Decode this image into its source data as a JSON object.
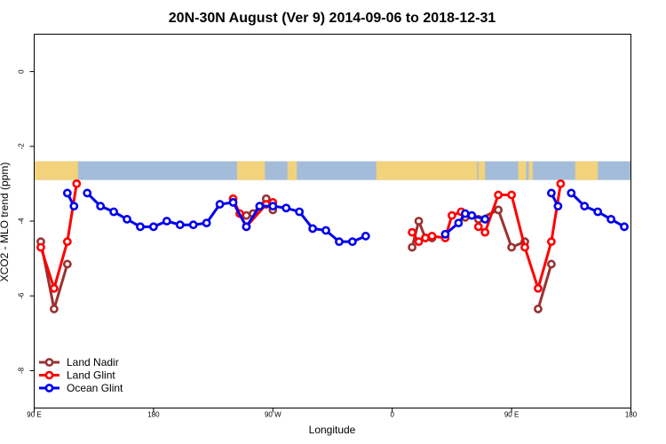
{
  "chart_data": {
    "type": "line",
    "title": "20N-30N August (Ver 9)   2014-09-06 to 2018-12-31",
    "xlabel": "Longitude",
    "ylabel": "XCO2 - MLO trend (ppm)",
    "xlim": [
      90,
      540
    ],
    "ylim": [
      -9,
      1
    ],
    "x_ticks": [
      {
        "value": 90,
        "label": "90 E"
      },
      {
        "value": 180,
        "label": "180"
      },
      {
        "value": 270,
        "label": "90 W"
      },
      {
        "value": 360,
        "label": "0"
      },
      {
        "value": 450,
        "label": "90 E"
      },
      {
        "value": 540,
        "label": "180"
      }
    ],
    "y_ticks": [
      {
        "value": 0,
        "label": "0"
      },
      {
        "value": -2,
        "label": "-2"
      },
      {
        "value": -4,
        "label": "-4"
      },
      {
        "value": -6,
        "label": "-6"
      },
      {
        "value": -8,
        "label": "-8"
      }
    ],
    "grid": false,
    "legend_position": "bottom-left",
    "map_strip": {
      "y_range": [
        -2.4,
        -2.9
      ],
      "ocean_color": "#a3bcd9",
      "land_color": "#f2d27a",
      "land_segments_x": [
        [
          90,
          123
        ],
        [
          243,
          264
        ],
        [
          281,
          283
        ],
        [
          283,
          288
        ],
        [
          348,
          424
        ],
        [
          425,
          430
        ],
        [
          455,
          461
        ],
        [
          463,
          466
        ],
        [
          498,
          515
        ]
      ]
    },
    "series": [
      {
        "name": "Land Nadir",
        "color": "#993333",
        "segments": [
          [
            [
              95,
              -4.55
            ],
            [
              105,
              -6.35
            ],
            [
              115,
              -5.15
            ]
          ],
          [
            [
              250,
              -3.85
            ],
            [
              255,
              -3.8
            ],
            [
              265,
              -3.4
            ],
            [
              270,
              -3.7
            ]
          ],
          [
            [
              375,
              -4.7
            ],
            [
              380,
              -4.0
            ],
            [
              385,
              -4.45
            ],
            [
              390,
              -4.45
            ]
          ],
          [
            [
              415,
              -3.9
            ]
          ],
          [
            [
              425,
              -3.95
            ],
            [
              440,
              -3.7
            ],
            [
              450,
              -4.7
            ],
            [
              460,
              -4.55
            ]
          ],
          [
            [
              470,
              -6.35
            ],
            [
              480,
              -5.15
            ]
          ]
        ]
      },
      {
        "name": "Land Glint",
        "color": "#ff0000",
        "segments": [
          [
            [
              95,
              -4.7
            ],
            [
              105,
              -5.8
            ],
            [
              115,
              -4.55
            ],
            [
              122,
              -3.0
            ]
          ],
          [
            [
              240,
              -3.4
            ],
            [
              245,
              -3.8
            ],
            [
              250,
              -4.15
            ],
            [
              265,
              -3.55
            ],
            [
              270,
              -3.5
            ]
          ],
          [
            [
              375,
              -4.3
            ],
            [
              380,
              -4.55
            ],
            [
              385,
              -4.45
            ],
            [
              390,
              -4.4
            ],
            [
              400,
              -4.45
            ],
            [
              405,
              -3.85
            ],
            [
              412,
              -3.75
            ]
          ],
          [
            [
              425,
              -4.15
            ],
            [
              430,
              -4.3
            ],
            [
              440,
              -3.3
            ],
            [
              450,
              -3.3
            ],
            [
              460,
              -4.7
            ],
            [
              470,
              -5.8
            ],
            [
              480,
              -4.55
            ],
            [
              487,
              -3.0
            ]
          ]
        ]
      },
      {
        "name": "Ocean Glint",
        "color": "#0000ee",
        "segments": [
          [
            [
              115,
              -3.25
            ],
            [
              120,
              -3.6
            ]
          ],
          [
            [
              130,
              -3.25
            ],
            [
              140,
              -3.6
            ],
            [
              150,
              -3.75
            ],
            [
              160,
              -3.95
            ],
            [
              170,
              -4.15
            ],
            [
              180,
              -4.15
            ],
            [
              190,
              -4.0
            ],
            [
              200,
              -4.1
            ],
            [
              210,
              -4.1
            ],
            [
              220,
              -4.05
            ],
            [
              230,
              -3.55
            ],
            [
              240,
              -3.5
            ],
            [
              250,
              -4.15
            ],
            [
              260,
              -3.6
            ],
            [
              270,
              -3.6
            ],
            [
              280,
              -3.65
            ],
            [
              290,
              -3.75
            ],
            [
              300,
              -4.2
            ],
            [
              310,
              -4.25
            ],
            [
              320,
              -4.55
            ],
            [
              330,
              -4.55
            ],
            [
              340,
              -4.4
            ]
          ],
          [
            [
              400,
              -4.35
            ],
            [
              410,
              -4.05
            ],
            [
              415,
              -3.8
            ],
            [
              420,
              -3.85
            ],
            [
              430,
              -3.95
            ]
          ],
          [
            [
              480,
              -3.25
            ],
            [
              485,
              -3.6
            ]
          ],
          [
            [
              495,
              -3.25
            ],
            [
              505,
              -3.6
            ],
            [
              515,
              -3.75
            ],
            [
              525,
              -3.95
            ],
            [
              535,
              -4.15
            ]
          ]
        ]
      }
    ]
  }
}
